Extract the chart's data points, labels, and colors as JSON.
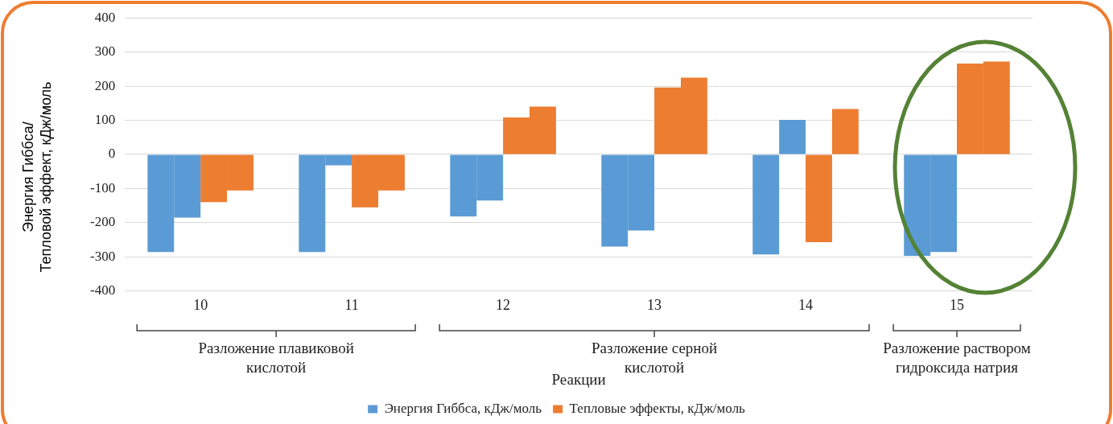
{
  "chart_data": {
    "type": "bar",
    "ylabel": "Энергия Гиббса/\nТепловой эффект, кДж/моль",
    "xlabel": "Реакции",
    "categories": [
      "10",
      "11",
      "12",
      "13",
      "14",
      "15"
    ],
    "series": [
      {
        "name": "Энергия Гиббса, кДж/моль",
        "color": "#5b9bd5",
        "values": [
          -286,
          -286,
          -182,
          -270,
          -293,
          -297
        ]
      },
      {
        "color": "#5b9bd5",
        "values": [
          -185,
          -32,
          -135,
          -223,
          101,
          -286
        ]
      },
      {
        "name": "Тепловые эффекты, кДж/моль",
        "color": "#ed7d31",
        "values": [
          -140,
          -155,
          108,
          196,
          -257,
          266
        ]
      },
      {
        "color": "#ed7d31",
        "values": [
          -106,
          -106,
          140,
          225,
          133,
          272
        ]
      }
    ],
    "ylim": [
      -400,
      400
    ],
    "yticks": [
      -400,
      -300,
      -200,
      -100,
      0,
      100,
      200,
      300,
      400
    ],
    "grid": "y",
    "legend": "bottom",
    "annotations": [
      "Разложение плавиковой кислотой",
      "Разложение серной кислотой",
      "Разложение раствором гидроксида натрия"
    ]
  }
}
